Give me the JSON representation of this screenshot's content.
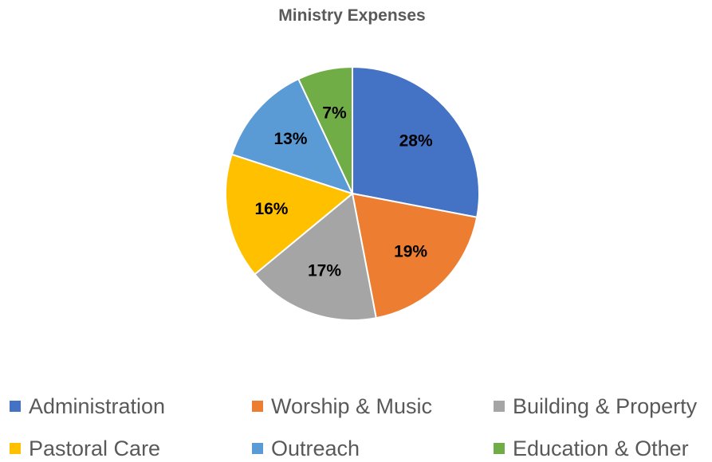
{
  "chart_data": {
    "type": "pie",
    "title": "Ministry Expenses",
    "categories": [
      "Administration",
      "Worship & Music",
      "Building & Property",
      "Pastoral Care",
      "Outreach",
      "Education & Other"
    ],
    "values": [
      28,
      19,
      17,
      16,
      13,
      7
    ],
    "labels": [
      "28%",
      "19%",
      "17%",
      "16%",
      "13%",
      "7%"
    ],
    "colors": [
      "#4472C4",
      "#ED7D31",
      "#A5A5A5",
      "#FFC000",
      "#5B9BD5",
      "#70AD47"
    ],
    "legend_position": "bottom"
  }
}
